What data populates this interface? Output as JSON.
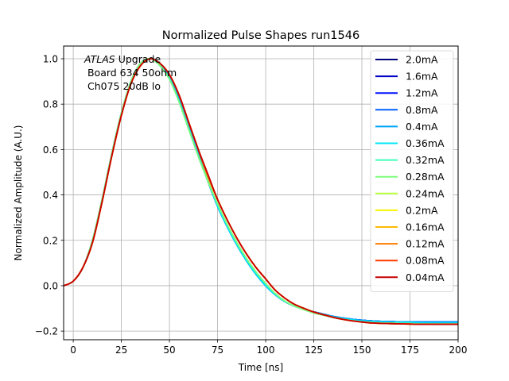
{
  "chart_data": {
    "type": "line",
    "title": "Normalized Pulse Shapes run1546",
    "xlabel": "Time [ns]",
    "ylabel": "Normalized Amplitude (A.U.)",
    "xlim": [
      -5,
      200
    ],
    "ylim": [
      -0.238,
      1.056
    ],
    "xticks": [
      0,
      25,
      50,
      75,
      100,
      125,
      150,
      175,
      200
    ],
    "xtick_labels": [
      "0",
      "25",
      "50",
      "75",
      "100",
      "125",
      "150",
      "175",
      "200"
    ],
    "yticks": [
      -0.2,
      0.0,
      0.2,
      0.4,
      0.6,
      0.8,
      1.0
    ],
    "ytick_labels": [
      "−0.2",
      "0.0",
      "0.2",
      "0.4",
      "0.6",
      "0.8",
      "1.0"
    ],
    "grid": true,
    "legend_position": "top-right",
    "annotation": {
      "italic": "ATLAS",
      "line1_rest": " Upgrade",
      "line2": " Board 634 50ohm",
      "line3": " Ch075 20dB lo"
    },
    "x": [
      -5,
      0,
      5,
      10,
      15,
      20,
      25,
      30,
      35,
      40,
      45,
      50,
      55,
      60,
      65,
      70,
      75,
      80,
      85,
      90,
      95,
      100,
      105,
      110,
      115,
      120,
      125,
      130,
      135,
      140,
      145,
      150,
      155,
      160,
      165,
      170,
      175,
      180,
      185,
      190,
      195,
      200
    ],
    "series": [
      {
        "name": "2.0mA",
        "color": "#00007f",
        "values": [
          0.0,
          0.02,
          0.08,
          0.2,
          0.38,
          0.58,
          0.76,
          0.9,
          0.98,
          1.0,
          0.98,
          0.92,
          0.82,
          0.7,
          0.58,
          0.46,
          0.35,
          0.26,
          0.18,
          0.11,
          0.05,
          0.0,
          -0.04,
          -0.07,
          -0.09,
          -0.105,
          -0.115,
          -0.125,
          -0.135,
          -0.142,
          -0.148,
          -0.152,
          -0.155,
          -0.157,
          -0.158,
          -0.159,
          -0.159,
          -0.16,
          -0.16,
          -0.16,
          -0.16,
          -0.16
        ]
      },
      {
        "name": "1.6mA",
        "color": "#0000c8",
        "values": [
          0.0,
          0.02,
          0.08,
          0.2,
          0.38,
          0.58,
          0.76,
          0.9,
          0.98,
          1.0,
          0.98,
          0.92,
          0.82,
          0.7,
          0.58,
          0.46,
          0.35,
          0.26,
          0.18,
          0.11,
          0.05,
          0.0,
          -0.04,
          -0.07,
          -0.09,
          -0.105,
          -0.115,
          -0.125,
          -0.135,
          -0.142,
          -0.148,
          -0.152,
          -0.155,
          -0.157,
          -0.158,
          -0.159,
          -0.159,
          -0.16,
          -0.16,
          -0.16,
          -0.16,
          -0.16
        ]
      },
      {
        "name": "1.2mA",
        "color": "#0010ff",
        "values": [
          0.0,
          0.02,
          0.08,
          0.2,
          0.38,
          0.58,
          0.76,
          0.9,
          0.98,
          1.0,
          0.98,
          0.92,
          0.82,
          0.7,
          0.58,
          0.46,
          0.35,
          0.26,
          0.18,
          0.11,
          0.05,
          0.0,
          -0.04,
          -0.07,
          -0.09,
          -0.105,
          -0.115,
          -0.125,
          -0.135,
          -0.142,
          -0.148,
          -0.152,
          -0.155,
          -0.157,
          -0.158,
          -0.159,
          -0.159,
          -0.16,
          -0.16,
          -0.16,
          -0.16,
          -0.16
        ]
      },
      {
        "name": "0.8mA",
        "color": "#0060ff",
        "values": [
          0.0,
          0.02,
          0.08,
          0.2,
          0.38,
          0.58,
          0.76,
          0.9,
          0.98,
          1.0,
          0.98,
          0.92,
          0.82,
          0.7,
          0.58,
          0.46,
          0.35,
          0.26,
          0.18,
          0.11,
          0.05,
          0.0,
          -0.04,
          -0.07,
          -0.09,
          -0.105,
          -0.115,
          -0.125,
          -0.135,
          -0.142,
          -0.148,
          -0.152,
          -0.155,
          -0.157,
          -0.158,
          -0.159,
          -0.159,
          -0.16,
          -0.16,
          -0.16,
          -0.16,
          -0.16
        ]
      },
      {
        "name": "0.4mA",
        "color": "#00a4ff",
        "values": [
          0.0,
          0.02,
          0.08,
          0.2,
          0.38,
          0.58,
          0.76,
          0.9,
          0.98,
          1.0,
          0.98,
          0.92,
          0.82,
          0.7,
          0.58,
          0.46,
          0.35,
          0.26,
          0.18,
          0.11,
          0.05,
          0.0,
          -0.04,
          -0.07,
          -0.09,
          -0.105,
          -0.115,
          -0.125,
          -0.135,
          -0.142,
          -0.148,
          -0.152,
          -0.155,
          -0.157,
          -0.158,
          -0.159,
          -0.159,
          -0.16,
          -0.16,
          -0.16,
          -0.16,
          -0.16
        ]
      },
      {
        "name": "0.36mA",
        "color": "#00e4f8",
        "values": [
          0.0,
          0.02,
          0.08,
          0.2,
          0.38,
          0.58,
          0.76,
          0.9,
          0.98,
          1.0,
          0.97,
          0.91,
          0.81,
          0.69,
          0.57,
          0.46,
          0.35,
          0.26,
          0.18,
          0.11,
          0.05,
          0.0,
          -0.04,
          -0.07,
          -0.09,
          -0.105,
          -0.117,
          -0.127,
          -0.137,
          -0.144,
          -0.15,
          -0.155,
          -0.158,
          -0.16,
          -0.161,
          -0.162,
          -0.163,
          -0.164,
          -0.165,
          -0.165,
          -0.165,
          -0.165
        ]
      },
      {
        "name": "0.32mA",
        "color": "#3effb8",
        "values": [
          0.0,
          0.02,
          0.08,
          0.2,
          0.38,
          0.58,
          0.76,
          0.9,
          0.98,
          1.0,
          0.97,
          0.91,
          0.81,
          0.69,
          0.57,
          0.46,
          0.36,
          0.27,
          0.19,
          0.12,
          0.06,
          0.01,
          -0.035,
          -0.068,
          -0.09,
          -0.106,
          -0.12,
          -0.13,
          -0.14,
          -0.148,
          -0.154,
          -0.159,
          -0.162,
          -0.164,
          -0.165,
          -0.166,
          -0.167,
          -0.168,
          -0.168,
          -0.168,
          -0.168,
          -0.168
        ]
      },
      {
        "name": "0.28mA",
        "color": "#7bff7b",
        "values": [
          0.0,
          0.02,
          0.08,
          0.2,
          0.38,
          0.58,
          0.76,
          0.9,
          0.98,
          1.0,
          0.97,
          0.91,
          0.81,
          0.69,
          0.57,
          0.46,
          0.36,
          0.27,
          0.19,
          0.12,
          0.06,
          0.01,
          -0.035,
          -0.068,
          -0.09,
          -0.106,
          -0.12,
          -0.13,
          -0.14,
          -0.148,
          -0.154,
          -0.159,
          -0.162,
          -0.164,
          -0.165,
          -0.166,
          -0.167,
          -0.168,
          -0.168,
          -0.168,
          -0.168,
          -0.168
        ]
      },
      {
        "name": "0.24mA",
        "color": "#b8ff3e",
        "values": [
          0.0,
          0.02,
          0.08,
          0.19,
          0.37,
          0.57,
          0.75,
          0.89,
          0.97,
          1.0,
          0.98,
          0.93,
          0.84,
          0.72,
          0.6,
          0.48,
          0.38,
          0.29,
          0.21,
          0.14,
          0.08,
          0.03,
          -0.02,
          -0.055,
          -0.082,
          -0.1,
          -0.116,
          -0.128,
          -0.139,
          -0.148,
          -0.155,
          -0.16,
          -0.164,
          -0.166,
          -0.167,
          -0.168,
          -0.169,
          -0.17,
          -0.17,
          -0.17,
          -0.17,
          -0.17
        ]
      },
      {
        "name": "0.2mA",
        "color": "#f8f500",
        "values": [
          0.0,
          0.02,
          0.08,
          0.19,
          0.37,
          0.57,
          0.75,
          0.89,
          0.97,
          1.0,
          0.98,
          0.93,
          0.84,
          0.72,
          0.6,
          0.48,
          0.38,
          0.29,
          0.21,
          0.14,
          0.08,
          0.03,
          -0.02,
          -0.055,
          -0.082,
          -0.1,
          -0.116,
          -0.128,
          -0.139,
          -0.148,
          -0.155,
          -0.16,
          -0.164,
          -0.166,
          -0.167,
          -0.168,
          -0.169,
          -0.17,
          -0.17,
          -0.17,
          -0.17,
          -0.17
        ]
      },
      {
        "name": "0.16mA",
        "color": "#ffb900",
        "values": [
          0.0,
          0.02,
          0.08,
          0.19,
          0.37,
          0.57,
          0.75,
          0.89,
          0.97,
          1.0,
          0.98,
          0.93,
          0.84,
          0.72,
          0.6,
          0.48,
          0.38,
          0.29,
          0.21,
          0.14,
          0.08,
          0.03,
          -0.02,
          -0.055,
          -0.082,
          -0.1,
          -0.116,
          -0.128,
          -0.139,
          -0.148,
          -0.155,
          -0.16,
          -0.164,
          -0.166,
          -0.167,
          -0.168,
          -0.169,
          -0.17,
          -0.17,
          -0.17,
          -0.17,
          -0.17
        ]
      },
      {
        "name": "0.12mA",
        "color": "#ff7a00",
        "values": [
          0.0,
          0.02,
          0.08,
          0.19,
          0.37,
          0.57,
          0.75,
          0.89,
          0.97,
          1.0,
          0.98,
          0.93,
          0.84,
          0.72,
          0.6,
          0.48,
          0.38,
          0.29,
          0.21,
          0.14,
          0.08,
          0.03,
          -0.02,
          -0.055,
          -0.082,
          -0.1,
          -0.116,
          -0.128,
          -0.139,
          -0.148,
          -0.155,
          -0.16,
          -0.164,
          -0.166,
          -0.167,
          -0.168,
          -0.169,
          -0.17,
          -0.17,
          -0.17,
          -0.17,
          -0.17
        ]
      },
      {
        "name": "0.08mA",
        "color": "#ff3b00",
        "values": [
          0.0,
          0.02,
          0.08,
          0.19,
          0.37,
          0.57,
          0.75,
          0.89,
          0.97,
          1.0,
          0.98,
          0.93,
          0.84,
          0.72,
          0.6,
          0.49,
          0.38,
          0.29,
          0.21,
          0.14,
          0.08,
          0.03,
          -0.02,
          -0.055,
          -0.082,
          -0.1,
          -0.116,
          -0.128,
          -0.139,
          -0.148,
          -0.155,
          -0.16,
          -0.164,
          -0.166,
          -0.167,
          -0.168,
          -0.169,
          -0.17,
          -0.17,
          -0.17,
          -0.17,
          -0.17
        ]
      },
      {
        "name": "0.04mA",
        "color": "#c80000",
        "values": [
          0.0,
          0.02,
          0.08,
          0.19,
          0.37,
          0.57,
          0.75,
          0.89,
          0.97,
          1.0,
          0.98,
          0.93,
          0.84,
          0.72,
          0.6,
          0.49,
          0.38,
          0.29,
          0.21,
          0.14,
          0.08,
          0.03,
          -0.02,
          -0.055,
          -0.082,
          -0.1,
          -0.116,
          -0.128,
          -0.139,
          -0.148,
          -0.155,
          -0.16,
          -0.164,
          -0.166,
          -0.167,
          -0.168,
          -0.169,
          -0.17,
          -0.17,
          -0.17,
          -0.17,
          -0.17
        ]
      }
    ]
  }
}
